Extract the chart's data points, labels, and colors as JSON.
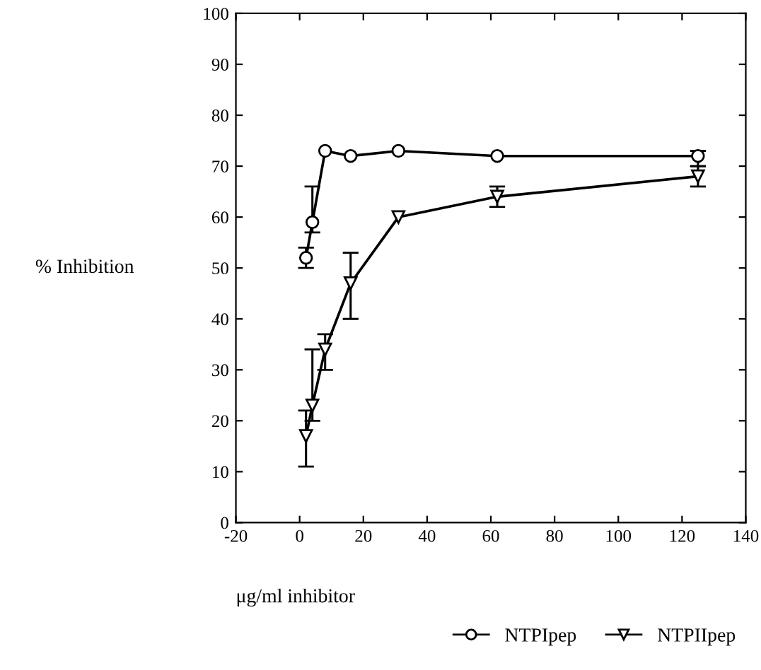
{
  "chart_data": {
    "type": "line",
    "ylabel": "% Inhibition",
    "xlabel": "μg/ml inhibitor",
    "xlim": [
      -20,
      140
    ],
    "ylim": [
      0,
      100
    ],
    "xticks": [
      -20,
      0,
      20,
      40,
      60,
      80,
      100,
      120,
      140
    ],
    "yticks": [
      0,
      10,
      20,
      30,
      40,
      50,
      60,
      70,
      80,
      90,
      100
    ],
    "grid": false,
    "legend": "bottom",
    "line_style": "solid",
    "series": [
      {
        "name": "NTPIpep",
        "color": "#000000",
        "marker": "circle",
        "x": [
          2,
          4,
          8,
          16,
          31,
          62,
          125
        ],
        "values": [
          52,
          59,
          73,
          72,
          73,
          72,
          72
        ],
        "errors": [
          [
            50,
            54
          ],
          [
            57,
            66
          ],
          null,
          null,
          null,
          null,
          [
            70,
            73
          ]
        ]
      },
      {
        "name": "NTPIIpep",
        "color": "#000000",
        "marker": "triangle",
        "x": [
          2,
          4,
          8,
          16,
          31,
          62,
          125
        ],
        "values": [
          17,
          23,
          34,
          47,
          60,
          64,
          68
        ],
        "errors": [
          [
            11,
            22
          ],
          [
            20,
            34
          ],
          [
            30,
            37
          ],
          [
            40,
            53
          ],
          null,
          [
            62,
            66
          ],
          [
            66,
            70
          ]
        ]
      }
    ]
  }
}
